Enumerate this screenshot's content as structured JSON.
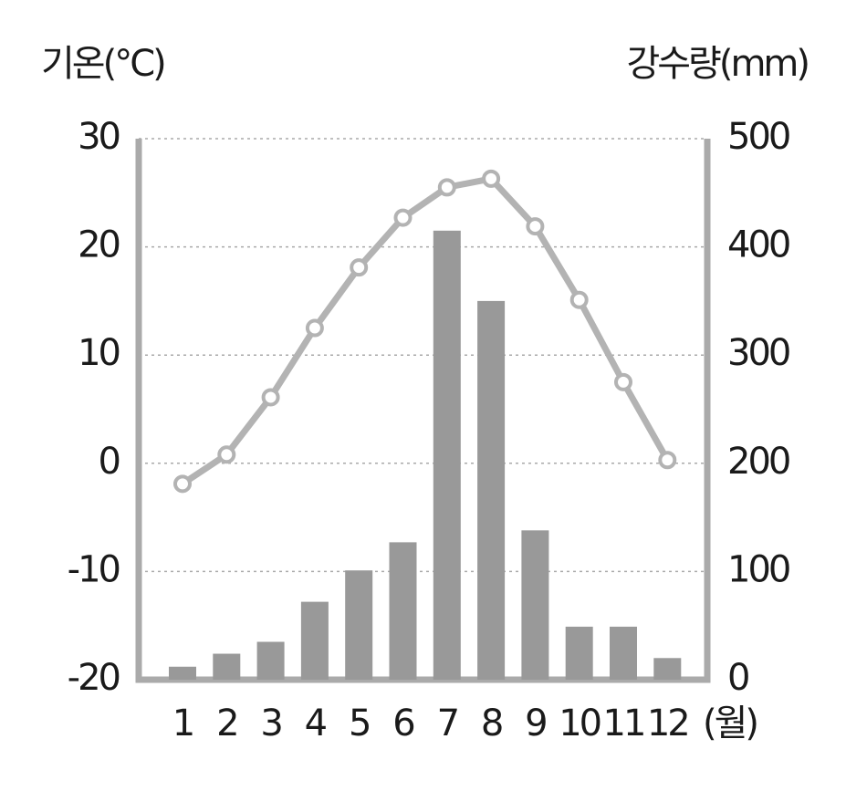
{
  "chart_data": {
    "type": "combo",
    "y_label": "기온(°C)",
    "y2_label": "강수량(mm)",
    "x_label": "(월)",
    "categories": [
      "1",
      "2",
      "3",
      "4",
      "5",
      "6",
      "7",
      "8",
      "9",
      "10",
      "11",
      "12"
    ],
    "series": [
      {
        "type": "bar",
        "axis": "y2",
        "color": "#999999",
        "values": [
          12,
          24,
          35,
          72,
          101,
          127,
          415,
          350,
          138,
          49,
          49,
          20
        ]
      },
      {
        "type": "line",
        "color": "#b3b3b3",
        "values": [
          -1.9,
          0.8,
          6.1,
          12.5,
          18.1,
          22.7,
          25.5,
          26.3,
          21.9,
          15.1,
          7.5,
          0.3
        ]
      }
    ],
    "ylim": [
      -20,
      30
    ],
    "yticks": [
      -20,
      -10,
      0,
      10,
      20,
      30
    ],
    "y2lim": [
      0,
      500
    ],
    "y2ticks": [
      0,
      100,
      200,
      300,
      400,
      500
    ],
    "grid": true
  }
}
